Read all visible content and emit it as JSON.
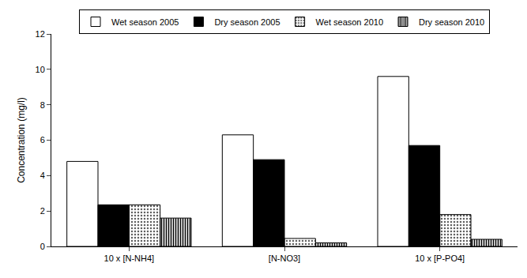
{
  "chart_data": {
    "type": "bar",
    "categories": [
      "10 x [N-NH4]",
      "[N-NO3]",
      "10 x [P-PO4]"
    ],
    "series": [
      {
        "name": "Wet season 2005",
        "color": "#ffffff",
        "values": [
          4.8,
          6.3,
          9.6
        ]
      },
      {
        "name": "Dry season 2005",
        "color": "#000000",
        "values": [
          2.35,
          4.9,
          5.7
        ]
      },
      {
        "name": "Wet season 2010",
        "color": "#c8c8c8",
        "values": [
          2.35,
          0.45,
          1.8
        ]
      },
      {
        "name": "Dry season 2010",
        "color": "#808080",
        "values": [
          1.6,
          0.2,
          0.4
        ]
      }
    ],
    "ylabel": "Concentration (mg/l)",
    "ylim": [
      0,
      12
    ],
    "yticks": [
      0,
      2,
      4,
      6,
      8,
      10,
      12
    ],
    "grid": false,
    "legend": "top"
  }
}
